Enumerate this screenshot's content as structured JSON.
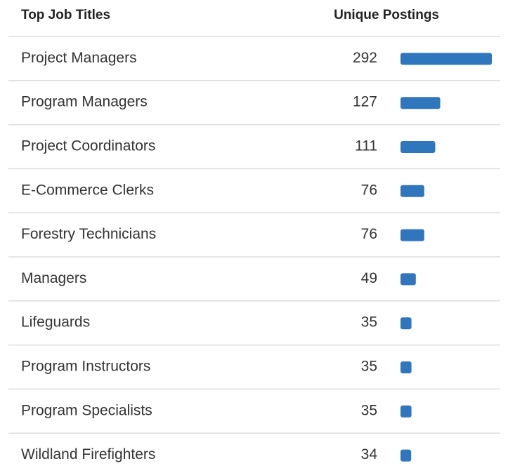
{
  "chart_data": {
    "type": "bar",
    "orientation": "horizontal",
    "columns": [
      "Top Job Titles",
      "Unique Postings"
    ],
    "categories": [
      "Project Managers",
      "Program Managers",
      "Project Coordinators",
      "E-Commerce Clerks",
      "Forestry Technicians",
      "Managers",
      "Lifeguards",
      "Program Instructors",
      "Program Specialists",
      "Wildland Firefighters"
    ],
    "values": [
      292,
      127,
      111,
      76,
      76,
      49,
      35,
      35,
      35,
      34
    ],
    "color": "#2f76bd"
  }
}
